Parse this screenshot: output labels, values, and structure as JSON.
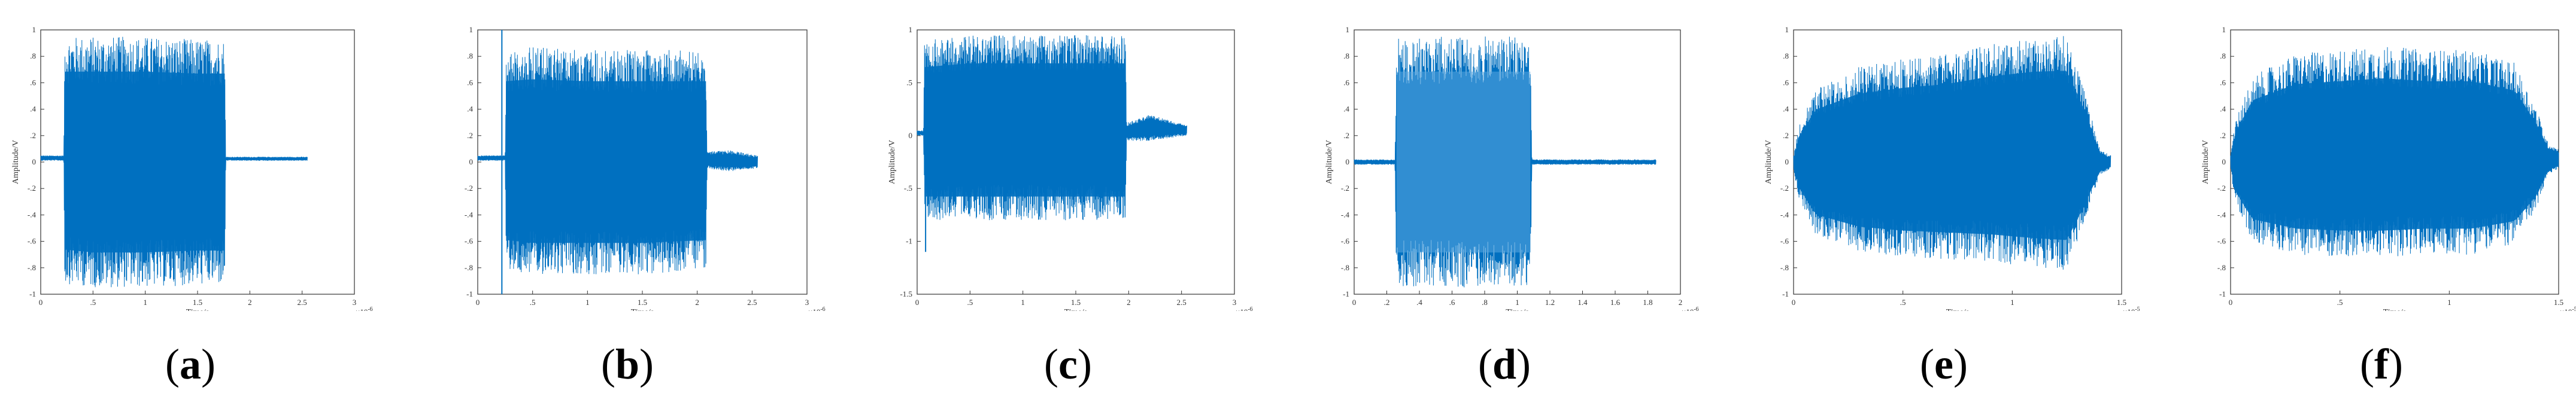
{
  "figure": {
    "panels": [
      {
        "caption_open": "(",
        "caption_letter": "a",
        "caption_close": ")"
      },
      {
        "caption_open": "(",
        "caption_letter": "b",
        "caption_close": ")"
      },
      {
        "caption_open": "(",
        "caption_letter": "c",
        "caption_close": ")"
      },
      {
        "caption_open": "(",
        "caption_letter": "d",
        "caption_close": ")"
      },
      {
        "caption_open": "(",
        "caption_letter": "e",
        "caption_close": ")"
      },
      {
        "caption_open": "(",
        "caption_letter": "f",
        "caption_close": ")"
      }
    ]
  },
  "colors": {
    "signal": "#0070c0",
    "signal_light": "#5aa8e0",
    "axis": "#333333"
  },
  "chart_data": [
    {
      "type": "line",
      "panel": "a",
      "xlabel": "Time/s",
      "ylabel": "Amplitude/V",
      "xlim": [
        0,
        3
      ],
      "ylim": [
        -1,
        1
      ],
      "x_exponent": "-6",
      "xticks": [
        0,
        0.5,
        1,
        1.5,
        2,
        2.5,
        3
      ],
      "yticks": [
        -1,
        -0.8,
        -0.6,
        -0.4,
        -0.2,
        0,
        0.2,
        0.4,
        0.6,
        0.8,
        1
      ],
      "envelope": {
        "x": [
          0,
          0.22,
          0.23,
          0.5,
          1.0,
          1.5,
          1.76,
          1.77,
          2.5,
          2.55
        ],
        "max": [
          0.05,
          0.05,
          0.95,
          0.95,
          0.95,
          0.93,
          0.93,
          0.04,
          0.04,
          0.04
        ],
        "min": [
          0.01,
          0.01,
          -0.92,
          -0.95,
          -0.95,
          -0.93,
          -0.93,
          0.01,
          0.01,
          0.01
        ]
      },
      "burst": [
        0.23,
        1.76
      ]
    },
    {
      "type": "line",
      "panel": "b",
      "xlabel": "Time/s",
      "ylabel": "",
      "xlim": [
        0,
        3
      ],
      "ylim": [
        -1,
        1
      ],
      "x_exponent": "-6",
      "xticks": [
        0,
        0.5,
        1,
        1.5,
        2,
        2.5,
        3
      ],
      "yticks": [
        -1,
        -0.8,
        -0.6,
        -0.4,
        -0.2,
        0,
        0.2,
        0.4,
        0.6,
        0.8,
        1
      ],
      "envelope": {
        "x": [
          0,
          0.25,
          0.26,
          0.5,
          1.0,
          1.5,
          2.08,
          2.09,
          2.3,
          2.55
        ],
        "max": [
          0.05,
          0.05,
          0.85,
          0.87,
          0.85,
          0.85,
          0.85,
          0.08,
          0.09,
          0.05
        ],
        "min": [
          0.01,
          0.01,
          -0.82,
          -0.85,
          -0.85,
          -0.85,
          -0.82,
          -0.05,
          -0.07,
          -0.05
        ]
      },
      "burst": [
        0.26,
        2.08
      ],
      "spike": {
        "x": 0.22,
        "y": [
          1,
          -1
        ]
      }
    },
    {
      "type": "line",
      "panel": "c",
      "xlabel": "Time/s",
      "ylabel": "Amplitude/V",
      "xlim": [
        0,
        3
      ],
      "ylim": [
        -1.5,
        1
      ],
      "x_exponent": "-6",
      "xticks": [
        0,
        0.5,
        1,
        1.5,
        2,
        2.5,
        3
      ],
      "yticks": [
        -1.5,
        -1,
        -0.5,
        0,
        0.5,
        1
      ],
      "envelope": {
        "x": [
          0,
          0.06,
          0.07,
          0.5,
          1.0,
          1.5,
          1.97,
          1.98,
          2.2,
          2.55
        ],
        "max": [
          0.05,
          0.05,
          0.9,
          0.95,
          0.95,
          0.95,
          0.95,
          0.12,
          0.2,
          0.1
        ],
        "min": [
          0.0,
          0.0,
          -0.8,
          -0.8,
          -0.8,
          -0.8,
          -0.8,
          -0.05,
          -0.05,
          0.0
        ]
      },
      "burst": [
        0.07,
        1.97
      ],
      "spike": {
        "x": 0.08,
        "y": [
          0,
          -1.1
        ]
      }
    },
    {
      "type": "line",
      "panel": "d",
      "xlabel": "Time/s",
      "ylabel": "Amplitude/V",
      "xlim": [
        0,
        2
      ],
      "ylim": [
        -1,
        1
      ],
      "x_exponent": "-6",
      "xticks": [
        0,
        0.2,
        0.4,
        0.6,
        0.8,
        1,
        1.2,
        1.4,
        1.6,
        1.8,
        2
      ],
      "yticks": [
        -1,
        -0.8,
        -0.6,
        -0.4,
        -0.2,
        0,
        0.2,
        0.4,
        0.6,
        0.8,
        1
      ],
      "envelope": {
        "x": [
          0,
          0.25,
          0.26,
          0.6,
          1.08,
          1.09,
          1.85
        ],
        "max": [
          0.02,
          0.02,
          0.95,
          0.95,
          0.95,
          0.02,
          0.02
        ],
        "min": [
          -0.02,
          -0.02,
          -0.95,
          -0.95,
          -0.95,
          -0.02,
          -0.02
        ]
      },
      "burst": [
        0.26,
        1.08
      ]
    },
    {
      "type": "line",
      "panel": "e",
      "xlabel": "Time/s",
      "ylabel": "Amplitude/V",
      "xlim": [
        0,
        1.5
      ],
      "ylim": [
        -1,
        1
      ],
      "x_exponent": "-5",
      "xticks": [
        0,
        0.5,
        1,
        1.5
      ],
      "yticks": [
        -1,
        -0.8,
        -0.6,
        -0.4,
        -0.2,
        0,
        0.2,
        0.4,
        0.6,
        0.8,
        1
      ],
      "envelope": {
        "x": [
          0,
          0.02,
          0.1,
          0.3,
          0.5,
          0.7,
          0.9,
          1.1,
          1.25,
          1.32,
          1.4,
          1.45
        ],
        "max": [
          0.05,
          0.25,
          0.55,
          0.72,
          0.78,
          0.82,
          0.9,
          0.95,
          0.96,
          0.6,
          0.1,
          0.05
        ],
        "min": [
          -0.05,
          -0.25,
          -0.55,
          -0.68,
          -0.72,
          -0.74,
          -0.76,
          -0.8,
          -0.82,
          -0.5,
          -0.1,
          -0.05
        ]
      },
      "burst": [
        0.02,
        1.42
      ]
    },
    {
      "type": "line",
      "panel": "f",
      "xlabel": "Time/s",
      "ylabel": "Amplitude/V",
      "xlim": [
        0,
        1.5
      ],
      "ylim": [
        -1,
        1
      ],
      "x_exponent": "-5",
      "xticks": [
        0,
        0.5,
        1,
        1.5
      ],
      "yticks": [
        -1,
        -0.8,
        -0.6,
        -0.4,
        -0.2,
        0,
        0.2,
        0.4,
        0.6,
        0.8,
        1
      ],
      "envelope": {
        "x": [
          0,
          0.02,
          0.1,
          0.3,
          0.5,
          0.7,
          0.9,
          1.1,
          1.3,
          1.4,
          1.45,
          1.5
        ],
        "max": [
          0.05,
          0.3,
          0.65,
          0.82,
          0.85,
          0.88,
          0.85,
          0.85,
          0.75,
          0.4,
          0.15,
          0.1
        ],
        "min": [
          -0.05,
          -0.3,
          -0.6,
          -0.7,
          -0.72,
          -0.72,
          -0.7,
          -0.7,
          -0.62,
          -0.35,
          -0.1,
          -0.05
        ]
      },
      "burst": [
        0.02,
        1.45
      ]
    }
  ]
}
